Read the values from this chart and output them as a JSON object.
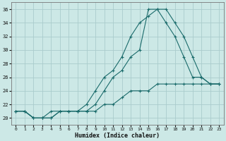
{
  "xlabel": "Humidex (Indice chaleur)",
  "bg_color": "#cce8e6",
  "grid_color": "#aacccc",
  "line_color": "#1a6b6b",
  "xlim": [
    -0.5,
    23.5
  ],
  "ylim": [
    19,
    37
  ],
  "xticks": [
    0,
    1,
    2,
    3,
    4,
    5,
    6,
    7,
    8,
    9,
    10,
    11,
    12,
    13,
    14,
    15,
    16,
    17,
    18,
    19,
    20,
    21,
    22,
    23
  ],
  "yticks": [
    20,
    22,
    24,
    26,
    28,
    30,
    32,
    34,
    36
  ],
  "line1_x": [
    0,
    1,
    2,
    3,
    4,
    5,
    6,
    7,
    8,
    9,
    10,
    11,
    12,
    13,
    14,
    15,
    16,
    17,
    18,
    19,
    20,
    21,
    22,
    23
  ],
  "line1_y": [
    21,
    21,
    20,
    20,
    20,
    21,
    21,
    21,
    21,
    21,
    22,
    22,
    23,
    24,
    24,
    24,
    25,
    25,
    25,
    25,
    25,
    25,
    25,
    25
  ],
  "line2_x": [
    0,
    1,
    2,
    3,
    4,
    5,
    6,
    7,
    8,
    9,
    10,
    11,
    12,
    13,
    14,
    15,
    16,
    17,
    18,
    19,
    20,
    21,
    22,
    23
  ],
  "line2_y": [
    21,
    21,
    20,
    20,
    20,
    21,
    21,
    21,
    22,
    24,
    26,
    27,
    29,
    32,
    34,
    35,
    36,
    34,
    32,
    29,
    26,
    26,
    25,
    25
  ],
  "line3_x": [
    0,
    1,
    2,
    3,
    4,
    5,
    6,
    7,
    8,
    9,
    10,
    11,
    12,
    13,
    14,
    15,
    16,
    17,
    18,
    19,
    20,
    21,
    22,
    23
  ],
  "line3_y": [
    21,
    21,
    20,
    20,
    21,
    21,
    21,
    21,
    21,
    22,
    24,
    26,
    27,
    29,
    30,
    36,
    36,
    36,
    34,
    32,
    29,
    26,
    25,
    25
  ]
}
